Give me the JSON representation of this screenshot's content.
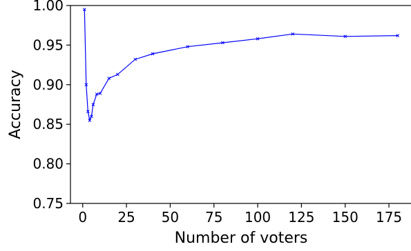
{
  "chart_data": {
    "type": "line",
    "title": "",
    "xlabel": "Number of voters",
    "ylabel": "Accuracy",
    "xlim": [
      -7,
      188
    ],
    "ylim": [
      0.75,
      1.0
    ],
    "xticks": [
      0,
      25,
      50,
      75,
      100,
      125,
      150,
      175
    ],
    "xtick_labels": [
      "0",
      "25",
      "50",
      "75",
      "100",
      "125",
      "150",
      "175"
    ],
    "yticks": [
      0.75,
      0.8,
      0.85,
      0.9,
      0.95,
      1.0
    ],
    "ytick_labels": [
      "0.75",
      "0.80",
      "0.85",
      "0.90",
      "0.95",
      "1.00"
    ],
    "grid": false,
    "legend": "none",
    "series": [
      {
        "color": "#0000ff",
        "marker": "x",
        "x": [
          1,
          2,
          3,
          4,
          5,
          6,
          8,
          10,
          15,
          20,
          30,
          40,
          60,
          80,
          100,
          120,
          150,
          180
        ],
        "y": [
          0.995,
          0.9,
          0.866,
          0.855,
          0.86,
          0.875,
          0.888,
          0.889,
          0.908,
          0.913,
          0.932,
          0.939,
          0.948,
          0.953,
          0.958,
          0.964,
          0.961,
          0.962
        ]
      }
    ]
  }
}
